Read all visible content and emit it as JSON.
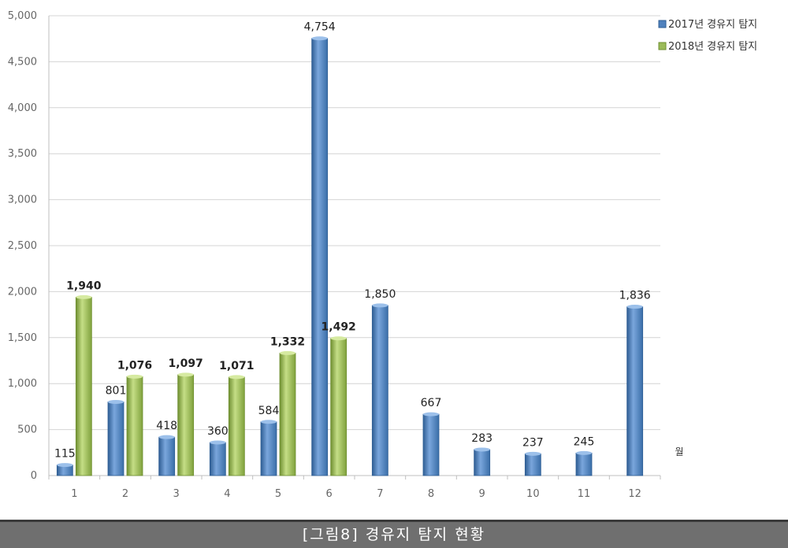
{
  "chart_data": {
    "type": "bar",
    "title": "",
    "xlabel": "월",
    "ylabel": "",
    "ylim": [
      0,
      5000
    ],
    "yticks": [
      "0",
      "500",
      "1,000",
      "1,500",
      "2,000",
      "2,500",
      "3,000",
      "3,500",
      "4,000",
      "4,500",
      "5,000"
    ],
    "grid": true,
    "legend_position": "top-right",
    "categories": [
      "1",
      "2",
      "3",
      "4",
      "5",
      "6",
      "7",
      "8",
      "9",
      "10",
      "11",
      "12"
    ],
    "series": [
      {
        "name": "2017년 경유지 탐지",
        "color": "#4f81bd",
        "values": [
          115,
          801,
          418,
          360,
          584,
          4754,
          1850,
          667,
          283,
          237,
          245,
          1836
        ],
        "labels": [
          "115",
          "801",
          "418",
          "360",
          "584",
          "4,754",
          "1,850",
          "667",
          "283",
          "237",
          "245",
          "1,836"
        ]
      },
      {
        "name": "2018년 경유지 탐지",
        "color": "#9bbb59",
        "values": [
          1940,
          1076,
          1097,
          1071,
          1332,
          1492,
          null,
          null,
          null,
          null,
          null,
          null
        ],
        "labels": [
          "1,940",
          "1,076",
          "1,097",
          "1,071",
          "1,332",
          "1,492",
          "",
          "",
          "",
          "",
          "",
          ""
        ]
      }
    ]
  },
  "caption": "[그림8] 경유지 탐지 현황"
}
